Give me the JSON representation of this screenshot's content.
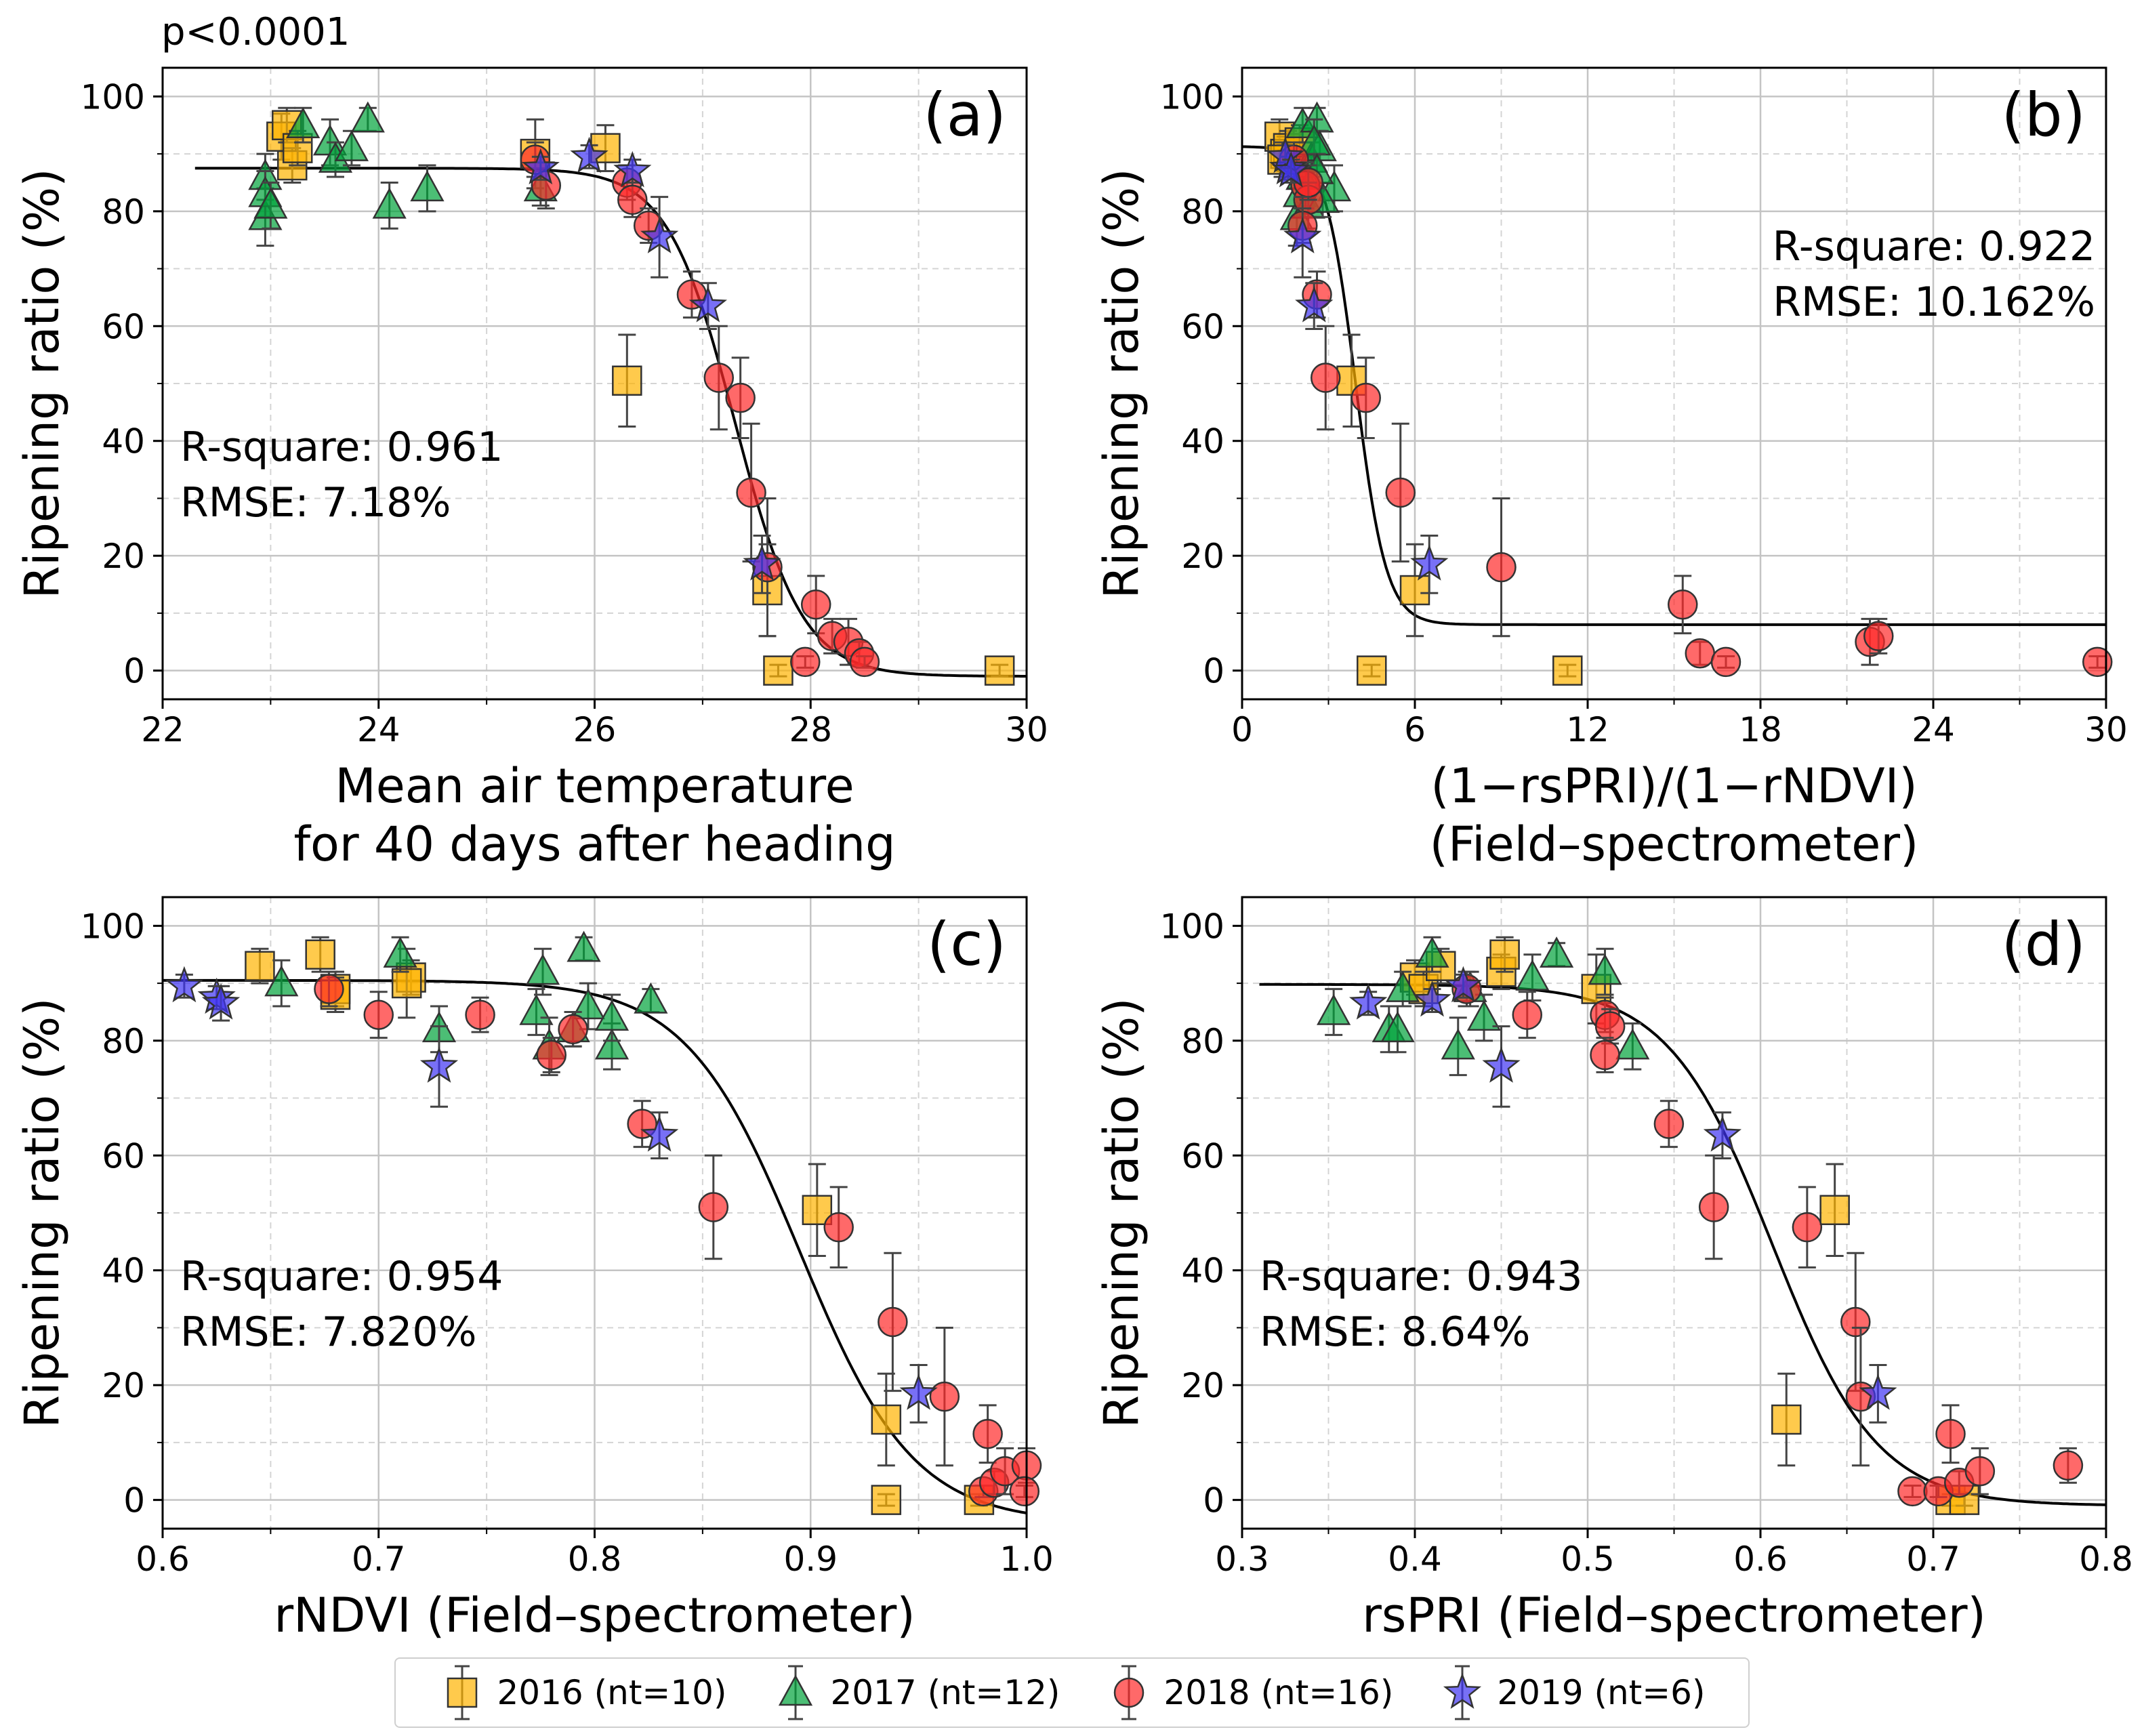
{
  "page_annotation": "p<0.0001",
  "legend": {
    "items": [
      {
        "label": "2016 (nt=10)",
        "marker": "square",
        "color": "#FFB300"
      },
      {
        "label": "2017 (nt=12)",
        "marker": "triangle",
        "color": "#00A33A"
      },
      {
        "label": "2018 (nt=16)",
        "marker": "circle",
        "color": "#FF2A2A"
      },
      {
        "label": "2019 (nt=6)",
        "marker": "star",
        "color": "#3E33F2"
      }
    ]
  },
  "chart_data": [
    {
      "type": "scatter",
      "panel": "(a)",
      "xlabel": [
        "Mean air temperature",
        "for 40 days after heading"
      ],
      "ylabel": "Ripening ratio (%)",
      "xlim": [
        22,
        30
      ],
      "ylim": [
        -5,
        105
      ],
      "xticks": [
        22,
        24,
        26,
        28,
        30
      ],
      "yticks": [
        0,
        20,
        40,
        60,
        80,
        100
      ],
      "xtick_labels": [
        "22",
        "24",
        "26",
        "28",
        "30"
      ],
      "stats": [
        "R-square: 0.961",
        "RMSE: 7.18%"
      ],
      "stats_position": "left-middle",
      "fit": {
        "kind": "logistic",
        "top": 87.5,
        "bottom": -1,
        "x0": 27.3,
        "k": 3.2
      },
      "series": [
        {
          "name": "2016",
          "points": [
            [
              23.1,
              93,
              4
            ],
            [
              23.15,
              95,
              3
            ],
            [
              23.2,
              88,
              3
            ],
            [
              23.25,
              91,
              3
            ],
            [
              25.45,
              90,
              6
            ],
            [
              26.1,
              91,
              4
            ],
            [
              26.3,
              50.5,
              8
            ],
            [
              27.6,
              14,
              8
            ],
            [
              27.7,
              0,
              1
            ],
            [
              29.75,
              0,
              1
            ]
          ]
        },
        {
          "name": "2017",
          "points": [
            [
              22.95,
              79,
              5
            ],
            [
              22.95,
              86,
              4
            ],
            [
              22.95,
              83,
              4
            ],
            [
              23.0,
              81,
              4
            ],
            [
              23.3,
              95,
              3
            ],
            [
              23.55,
              92,
              4
            ],
            [
              23.6,
              89,
              3
            ],
            [
              23.75,
              91,
              3
            ],
            [
              23.9,
              96,
              2
            ],
            [
              24.1,
              81,
              4
            ],
            [
              24.45,
              84,
              4
            ],
            [
              25.5,
              84,
              3
            ]
          ]
        },
        {
          "name": "2018",
          "points": [
            [
              25.45,
              89,
              3
            ],
            [
              25.55,
              84.5,
              4
            ],
            [
              26.3,
              85,
              3
            ],
            [
              26.35,
              82,
              3
            ],
            [
              26.5,
              77.5,
              3
            ],
            [
              26.9,
              65.5,
              4
            ],
            [
              27.15,
              51,
              9
            ],
            [
              27.35,
              47.5,
              7
            ],
            [
              27.45,
              31,
              12
            ],
            [
              27.6,
              18,
              12
            ],
            [
              27.95,
              1.5,
              1
            ],
            [
              28.05,
              11.5,
              5
            ],
            [
              28.2,
              6,
              3
            ],
            [
              28.35,
              5,
              4
            ],
            [
              28.45,
              3,
              2
            ],
            [
              28.5,
              1.5,
              1
            ]
          ]
        },
        {
          "name": "2019",
          "points": [
            [
              25.5,
              87.5,
              2
            ],
            [
              25.95,
              89.5,
              2
            ],
            [
              26.35,
              87,
              2
            ],
            [
              26.6,
              75.5,
              7
            ],
            [
              27.05,
              63.5,
              4
            ],
            [
              27.55,
              18.5,
              5
            ]
          ]
        }
      ]
    },
    {
      "type": "scatter",
      "panel": "(b)",
      "xlabel": [
        "(1−rsPRI)/(1−rNDVI)",
        "(Field–spectrometer)"
      ],
      "ylabel": "Ripening ratio (%)",
      "xlim": [
        0,
        30
      ],
      "ylim": [
        -5,
        105
      ],
      "xticks": [
        0,
        6,
        12,
        18,
        24,
        30
      ],
      "yticks": [
        0,
        20,
        40,
        60,
        80,
        100
      ],
      "xtick_labels": [
        "0",
        "6",
        "12",
        "18",
        "24",
        "30"
      ],
      "stats": [
        "R-square: 0.922",
        "RMSE: 10.162%"
      ],
      "stats_position": "right-top",
      "fit": {
        "kind": "logistic",
        "top": 91.3,
        "bottom": 8,
        "x0": 3.95,
        "k": 1.9
      },
      "series": [
        {
          "name": "2016",
          "points": [
            [
              1.3,
              93,
              3
            ],
            [
              1.5,
              90,
              3
            ],
            [
              1.6,
              91,
              3
            ],
            [
              1.8,
              88,
              3
            ],
            [
              2.0,
              92,
              3
            ],
            [
              3.8,
              50.5,
              8
            ],
            [
              6.0,
              14,
              8
            ],
            [
              4.5,
              0,
              1
            ],
            [
              11.3,
              0,
              1
            ],
            [
              1.4,
              89,
              3
            ]
          ]
        },
        {
          "name": "2017",
          "points": [
            [
              1.9,
              79,
              5
            ],
            [
              2.1,
              86,
              4
            ],
            [
              2.0,
              83,
              4
            ],
            [
              2.3,
              81,
              4
            ],
            [
              2.1,
              95,
              3
            ],
            [
              2.6,
              96,
              2
            ],
            [
              2.4,
              89,
              3
            ],
            [
              2.7,
              91,
              3
            ],
            [
              3.2,
              84,
              4
            ],
            [
              2.8,
              82,
              3
            ],
            [
              2.5,
              92,
              4
            ],
            [
              2.6,
              87,
              3
            ]
          ]
        },
        {
          "name": "2018",
          "points": [
            [
              1.8,
              89,
              3
            ],
            [
              2.2,
              84.5,
              4
            ],
            [
              2.3,
              82,
              3
            ],
            [
              2.1,
              77.5,
              3
            ],
            [
              2.6,
              65.5,
              4
            ],
            [
              2.9,
              51,
              9
            ],
            [
              4.3,
              47.5,
              7
            ],
            [
              5.5,
              31,
              12
            ],
            [
              9.0,
              18,
              12
            ],
            [
              15.3,
              11.5,
              5
            ],
            [
              15.9,
              3,
              2
            ],
            [
              16.8,
              1.5,
              1
            ],
            [
              21.8,
              5,
              4
            ],
            [
              22.1,
              6,
              3
            ],
            [
              29.7,
              1.5,
              1
            ],
            [
              2.3,
              85,
              3
            ]
          ]
        },
        {
          "name": "2019",
          "points": [
            [
              1.6,
              87.5,
              2
            ],
            [
              1.5,
              89.5,
              2
            ],
            [
              1.7,
              87,
              2
            ],
            [
              2.1,
              75.5,
              7
            ],
            [
              2.5,
              63.5,
              4
            ],
            [
              6.5,
              18.5,
              5
            ]
          ]
        }
      ]
    },
    {
      "type": "scatter",
      "panel": "(c)",
      "xlabel": [
        "rNDVI (Field–spectrometer)"
      ],
      "ylabel": "Ripening ratio (%)",
      "xlim": [
        0.6,
        1.0
      ],
      "ylim": [
        -5,
        105
      ],
      "xticks": [
        0.6,
        0.7,
        0.8,
        0.9,
        1.0
      ],
      "yticks": [
        0,
        20,
        40,
        60,
        80,
        100
      ],
      "xtick_labels": [
        "0.6",
        "0.7",
        "0.8",
        "0.9",
        "1.0"
      ],
      "stats": [
        "R-square: 0.954",
        "RMSE: 7.820%"
      ],
      "stats_position": "left-middle",
      "fit": {
        "kind": "logistic",
        "top": 90.5,
        "bottom": -4,
        "x0": 0.895,
        "k": 38
      },
      "series": [
        {
          "name": "2016",
          "points": [
            [
              0.645,
              93,
              3
            ],
            [
              0.673,
              95,
              3
            ],
            [
              0.68,
              89,
              3
            ],
            [
              0.715,
              91,
              3
            ],
            [
              0.713,
              90,
              6
            ],
            [
              0.903,
              50.5,
              8
            ],
            [
              0.935,
              14,
              8
            ],
            [
              0.935,
              0,
              1
            ],
            [
              0.978,
              0,
              1
            ],
            [
              0.68,
              88,
              3
            ]
          ]
        },
        {
          "name": "2017",
          "points": [
            [
              0.655,
              90,
              4
            ],
            [
              0.71,
              95,
              3
            ],
            [
              0.728,
              82,
              4
            ],
            [
              0.773,
              85,
              4
            ],
            [
              0.776,
              92,
              4
            ],
            [
              0.779,
              79,
              5
            ],
            [
              0.795,
              96,
              2
            ],
            [
              0.79,
              82,
              3
            ],
            [
              0.797,
              86,
              4
            ],
            [
              0.808,
              79,
              4
            ],
            [
              0.808,
              84,
              4
            ],
            [
              0.826,
              87,
              2
            ]
          ]
        },
        {
          "name": "2018",
          "points": [
            [
              0.677,
              89,
              3
            ],
            [
              0.7,
              84.5,
              4
            ],
            [
              0.747,
              84.5,
              3
            ],
            [
              0.78,
              77.5,
              3
            ],
            [
              0.79,
              82,
              3
            ],
            [
              0.822,
              65.5,
              4
            ],
            [
              0.855,
              51,
              9
            ],
            [
              0.913,
              47.5,
              7
            ],
            [
              0.938,
              31,
              12
            ],
            [
              0.962,
              18,
              12
            ],
            [
              0.982,
              11.5,
              5
            ],
            [
              0.98,
              1.5,
              1
            ],
            [
              0.985,
              3,
              2
            ],
            [
              0.99,
              5,
              4
            ],
            [
              1.0,
              6,
              3
            ],
            [
              0.999,
              1.5,
              1
            ]
          ]
        },
        {
          "name": "2019",
          "points": [
            [
              0.61,
              89.5,
              2
            ],
            [
              0.625,
              87.5,
              2
            ],
            [
              0.627,
              86.5,
              3
            ],
            [
              0.728,
              75.5,
              7
            ],
            [
              0.83,
              63.5,
              4
            ],
            [
              0.95,
              18.5,
              5
            ]
          ]
        }
      ]
    },
    {
      "type": "scatter",
      "panel": "(d)",
      "xlabel": [
        "rsPRI (Field–spectrometer)"
      ],
      "ylabel": "Ripening ratio (%)",
      "xlim": [
        0.3,
        0.8
      ],
      "ylim": [
        -5,
        105
      ],
      "xticks": [
        0.3,
        0.4,
        0.5,
        0.6,
        0.7,
        0.8
      ],
      "yticks": [
        0,
        20,
        40,
        60,
        80,
        100
      ],
      "xtick_labels": [
        "0.3",
        "0.4",
        "0.5",
        "0.6",
        "0.7",
        "0.8"
      ],
      "stats": [
        "R-square: 0.943",
        "RMSE: 8.64%"
      ],
      "stats_position": "left-middle",
      "fit": {
        "kind": "logistic",
        "top": 89.8,
        "bottom": -1,
        "x0": 0.607,
        "k": 33
      },
      "series": [
        {
          "name": "2016",
          "points": [
            [
              0.4,
              91,
              3
            ],
            [
              0.405,
              89,
              3
            ],
            [
              0.415,
              93,
              3
            ],
            [
              0.45,
              92,
              3
            ],
            [
              0.452,
              95,
              3
            ],
            [
              0.505,
              89,
              6
            ],
            [
              0.643,
              50.5,
              8
            ],
            [
              0.615,
              14,
              8
            ],
            [
              0.71,
              0,
              1
            ],
            [
              0.718,
              0,
              1
            ]
          ]
        },
        {
          "name": "2017",
          "points": [
            [
              0.353,
              85,
              4
            ],
            [
              0.385,
              82,
              4
            ],
            [
              0.39,
              82,
              4
            ],
            [
              0.393,
              89,
              3
            ],
            [
              0.41,
              95,
              3
            ],
            [
              0.425,
              79,
              5
            ],
            [
              0.432,
              89,
              3
            ],
            [
              0.44,
              84,
              4
            ],
            [
              0.468,
              91,
              4
            ],
            [
              0.482,
              95,
              2
            ],
            [
              0.51,
              92,
              4
            ],
            [
              0.526,
              79,
              4
            ]
          ]
        },
        {
          "name": "2018",
          "points": [
            [
              0.43,
              89,
              3
            ],
            [
              0.465,
              84.5,
              4
            ],
            [
              0.51,
              84.5,
              3
            ],
            [
              0.513,
              82.5,
              3
            ],
            [
              0.51,
              77.5,
              3
            ],
            [
              0.547,
              65.5,
              4
            ],
            [
              0.573,
              51,
              9
            ],
            [
              0.627,
              47.5,
              7
            ],
            [
              0.655,
              31,
              12
            ],
            [
              0.658,
              18,
              12
            ],
            [
              0.688,
              1.5,
              1
            ],
            [
              0.703,
              1.5,
              1
            ],
            [
              0.71,
              11.5,
              5
            ],
            [
              0.715,
              3,
              2
            ],
            [
              0.727,
              5,
              4
            ],
            [
              0.778,
              6,
              3
            ]
          ]
        },
        {
          "name": "2019",
          "points": [
            [
              0.373,
              86.5,
              2
            ],
            [
              0.41,
              87,
              2
            ],
            [
              0.428,
              89.5,
              2
            ],
            [
              0.45,
              75.5,
              7
            ],
            [
              0.578,
              63.5,
              4
            ],
            [
              0.668,
              18.5,
              5
            ]
          ]
        }
      ]
    }
  ]
}
